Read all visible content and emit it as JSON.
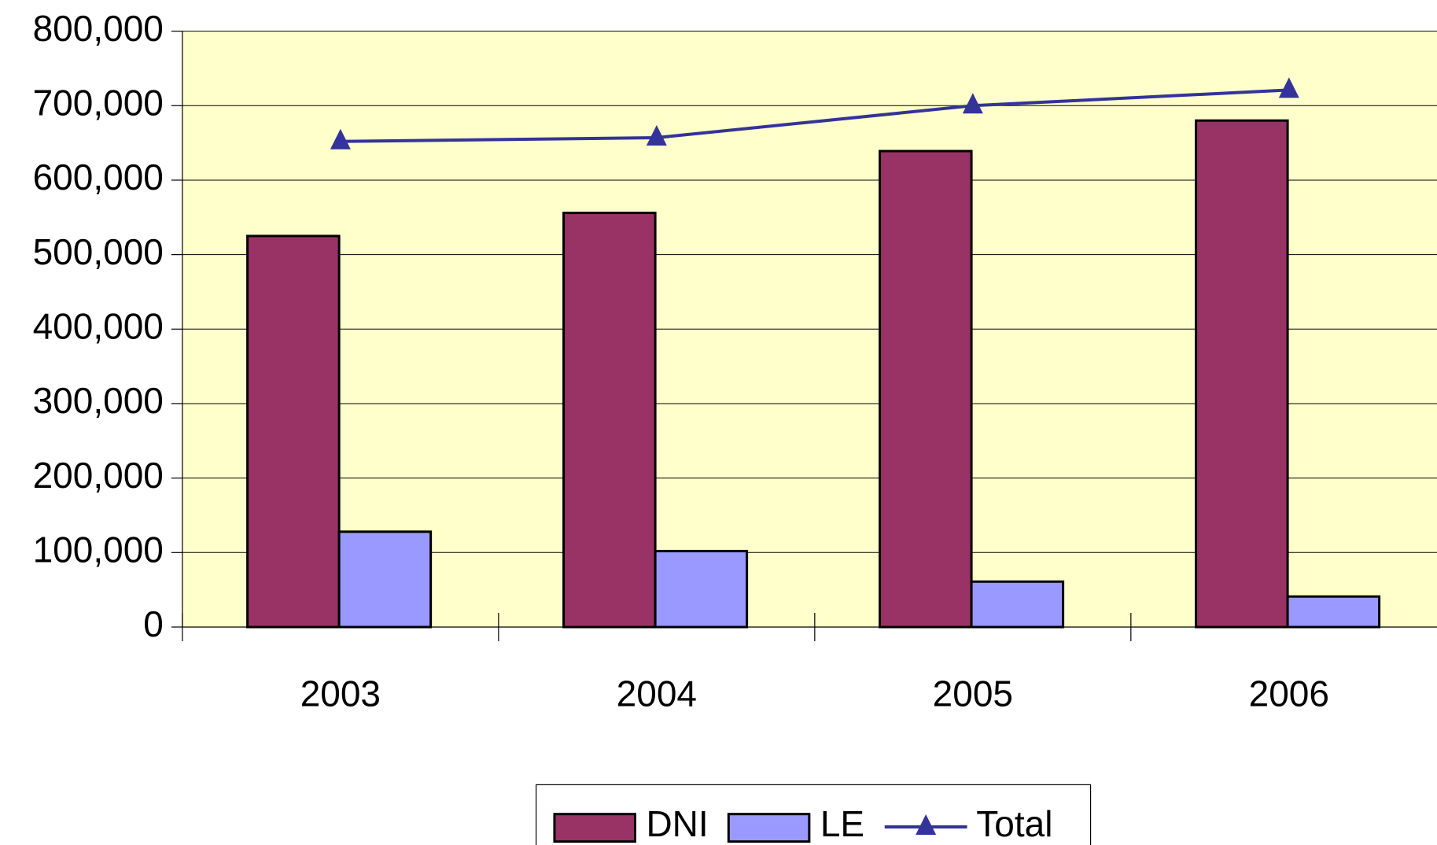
{
  "chart_data": {
    "type": "bar",
    "categories": [
      "2003",
      "2004",
      "2005",
      "2006"
    ],
    "series": [
      {
        "name": "DNI",
        "type": "bar",
        "color": "#993366",
        "values": [
          525000,
          556000,
          639000,
          680000
        ]
      },
      {
        "name": "LE",
        "type": "bar",
        "color": "#9999ff",
        "values": [
          128000,
          102000,
          61000,
          41000
        ]
      },
      {
        "name": "Total",
        "type": "line",
        "color": "#333399",
        "values": [
          652000,
          657000,
          700000,
          721000
        ]
      }
    ],
    "ylim": [
      0,
      800000
    ],
    "yticks": [
      {
        "value": 0,
        "label": "0"
      },
      {
        "value": 100000,
        "label": "100,000"
      },
      {
        "value": 200000,
        "label": "200,000"
      },
      {
        "value": 300000,
        "label": "300,000"
      },
      {
        "value": 400000,
        "label": "400,000"
      },
      {
        "value": 500000,
        "label": "500,000"
      },
      {
        "value": 600000,
        "label": "600,000"
      },
      {
        "value": 700000,
        "label": "700,000"
      },
      {
        "value": 800000,
        "label": "800,000"
      }
    ],
    "grid": true,
    "plot_background": "#ffffcc",
    "legend": "bottom"
  }
}
